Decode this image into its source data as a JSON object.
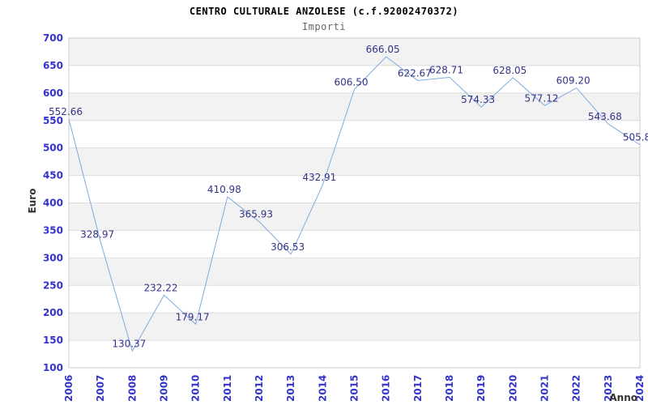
{
  "chart_data": {
    "type": "line",
    "title": "CENTRO CULTURALE ANZOLESE (c.f.92002470372)",
    "subtitle": "Importi",
    "ylabel": "Euro",
    "xlabel": "Anno",
    "categories": [
      "2006",
      "2007",
      "2008",
      "2009",
      "2010",
      "2011",
      "2012",
      "2013",
      "2014",
      "2015",
      "2016",
      "2017",
      "2018",
      "2019",
      "2020",
      "2021",
      "2022",
      "2023",
      "2024"
    ],
    "series": [
      {
        "name": "Importi",
        "values": [
          552.66,
          328.97,
          130.37,
          232.22,
          179.17,
          410.98,
          365.93,
          306.53,
          432.91,
          606.5,
          666.05,
          622.67,
          628.71,
          574.33,
          628.05,
          577.12,
          609.2,
          543.68,
          505.8
        ],
        "point_labels": [
          "552.66",
          "328.97",
          "130.37",
          "232.22",
          "179.17",
          "410.98",
          "365.93",
          "306.53",
          "432.91",
          "606.50",
          "666.05",
          "622.67",
          "628.71",
          "574.33",
          "628.05",
          "577.12",
          "609.20",
          "543.68",
          "505.8"
        ]
      }
    ],
    "ylim": [
      100,
      700
    ],
    "ytick_step": 50,
    "ytick_labels": [
      "100",
      "150",
      "200",
      "250",
      "300",
      "350",
      "400",
      "450",
      "500",
      "550",
      "600",
      "650",
      "700"
    ],
    "grid": "horizontal-gridlines-with-alternating-bands",
    "legend": "none",
    "colors": {
      "line": "#7fabdf",
      "band": "#f2f2f2",
      "gridline": "#dddddd",
      "plot_border": "#cccccc",
      "axis_tick_text": "#3333cc",
      "point_label_text": "#333388",
      "title_text": "#000000",
      "subtitle_text": "#666666",
      "axis_title_text": "#333333",
      "background": "#ffffff"
    }
  }
}
